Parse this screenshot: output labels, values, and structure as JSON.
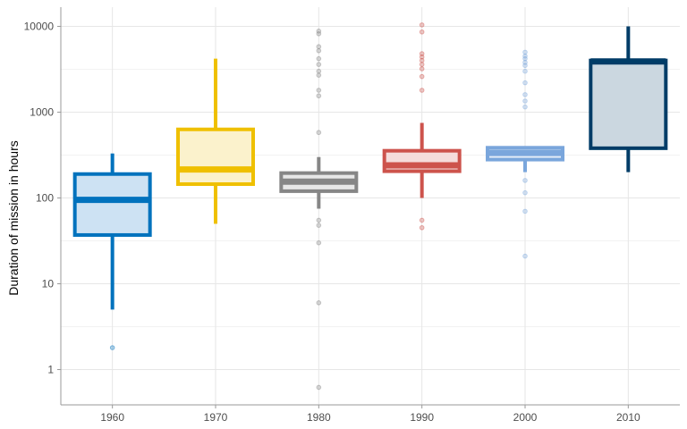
{
  "chart_data": {
    "type": "boxplot",
    "title": "",
    "xlabel": "",
    "ylabel": "Duration of mission in hours",
    "yscale": "log10",
    "ylim": [
      0.5,
      17000
    ],
    "grid": true,
    "legend": "none",
    "y_ticks": [
      {
        "value": 1,
        "label": "1"
      },
      {
        "value": 10,
        "label": "10"
      },
      {
        "value": 100,
        "label": "100"
      },
      {
        "value": 1000,
        "label": "1000"
      },
      {
        "value": 10000,
        "label": "10000"
      }
    ],
    "categories": [
      "1960",
      "1970",
      "1980",
      "1990",
      "2000",
      "2010"
    ],
    "boxes": [
      {
        "category": "1960",
        "color": "#0072bd",
        "fill": "#cde2f3",
        "whisker_low": 5,
        "q1": 37,
        "median": 95,
        "q3": 190,
        "whisker_high": 330,
        "outliers": [
          1.8
        ]
      },
      {
        "category": "1970",
        "color": "#efc000",
        "fill": "#fbf2cc",
        "whisker_low": 50,
        "q1": 145,
        "median": 215,
        "q3": 630,
        "whisker_high": 4200,
        "outliers": []
      },
      {
        "category": "1980",
        "color": "#868686",
        "fill": "#e7e7e7",
        "whisker_low": 75,
        "q1": 120,
        "median": 155,
        "q3": 195,
        "whisker_high": 300,
        "outliers": [
          0.62,
          6,
          30,
          48,
          55,
          580,
          1550,
          1800,
          2700,
          3000,
          3600,
          4200,
          5200,
          5800,
          8200,
          8800
        ]
      },
      {
        "category": "1990",
        "color": "#cd534c",
        "fill": "#f5dcdb",
        "whisker_low": 100,
        "q1": 205,
        "median": 240,
        "q3": 355,
        "whisker_high": 750,
        "outliers": [
          45,
          55,
          1800,
          2600,
          3200,
          3600,
          4000,
          4400,
          4800,
          8600,
          10400
        ]
      },
      {
        "category": "2000",
        "color": "#7aa6dc",
        "fill": "#e4edf8",
        "whisker_low": 200,
        "q1": 280,
        "median": 335,
        "q3": 385,
        "whisker_high": 390,
        "outliers": [
          21,
          70,
          115,
          160,
          1150,
          1350,
          1600,
          2200,
          3000,
          3500,
          3800,
          4200,
          4500,
          5000
        ]
      },
      {
        "category": "2010",
        "color": "#003c67",
        "fill": "#cbd7e0",
        "whisker_low": 200,
        "q1": 380,
        "median": 3900,
        "q3": 4000,
        "whisker_high": 10000,
        "outliers": []
      }
    ]
  }
}
